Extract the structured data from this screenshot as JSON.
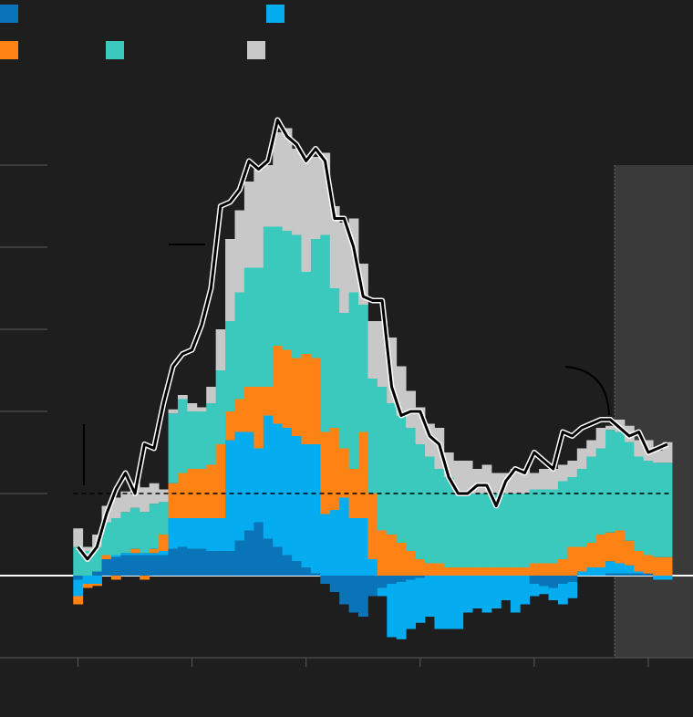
{
  "chart_data": {
    "type": "bar",
    "stacked": true,
    "x": [
      0,
      1,
      2,
      3,
      4,
      5,
      6,
      7,
      8,
      9,
      10,
      11,
      12,
      13,
      14,
      15,
      16,
      17,
      18,
      19,
      20,
      21,
      22,
      23,
      24,
      25,
      26,
      27,
      28,
      29,
      30,
      31,
      32,
      33,
      34,
      35,
      36,
      37,
      38,
      39,
      40,
      41,
      42,
      43,
      44,
      45,
      46,
      47,
      48,
      49,
      50,
      51,
      52,
      53,
      54,
      55,
      56,
      57,
      58,
      59,
      60,
      61,
      62
    ],
    "xlim": [
      -8.2,
      64.7
    ],
    "xticks": [
      0,
      12,
      24,
      36,
      48,
      60
    ],
    "ylim": [
      -2,
      12
    ],
    "yticks": [
      -2,
      0,
      2,
      4,
      6,
      8,
      10
    ],
    "reference_line": 2,
    "shade_start": 56.45,
    "series": [
      {
        "color": "#0a74b8",
        "values": [
          -0.1,
          0,
          0.1,
          0.4,
          0.45,
          0.5,
          0.5,
          0.5,
          0.5,
          0.5,
          0.65,
          0.7,
          0.65,
          0.65,
          0.6,
          0.6,
          0.6,
          0.85,
          1.1,
          1.3,
          0.9,
          0.7,
          0.5,
          0.35,
          0.2,
          0.05,
          -0.2,
          -0.4,
          -0.7,
          -0.9,
          -1.0,
          -0.5,
          -0.3,
          -0.2,
          -0.15,
          -0.1,
          -0.05,
          0,
          0,
          0,
          0,
          0,
          0,
          0,
          0,
          0,
          0,
          0,
          -0.2,
          -0.25,
          -0.3,
          -0.2,
          -0.15,
          0,
          0,
          0,
          0.05,
          0.05,
          0.05,
          0.05,
          0.05,
          0,
          0
        ]
      },
      {
        "color": "#05acf0",
        "values": [
          -0.4,
          -0.2,
          -0.2,
          0,
          0.05,
          0.05,
          0.05,
          0.05,
          0.05,
          0.1,
          0.75,
          0.7,
          0.75,
          0.75,
          0.8,
          0.8,
          2.7,
          2.65,
          2.4,
          1.8,
          3.0,
          3.0,
          3.1,
          3.05,
          3.0,
          3.15,
          1.5,
          1.6,
          1.9,
          1.4,
          1.4,
          0.4,
          -0.2,
          -1.3,
          -1.4,
          -1.2,
          -1.1,
          -1.0,
          -1.3,
          -1.3,
          -1.3,
          -0.9,
          -0.8,
          -0.9,
          -0.8,
          -0.6,
          -0.9,
          -0.7,
          -0.3,
          -0.2,
          -0.3,
          -0.5,
          -0.4,
          0.1,
          0.2,
          0.2,
          0.3,
          0.25,
          0.2,
          0.05,
          0,
          -0.1,
          -0.1
        ]
      },
      {
        "color": "#ff8314",
        "values": [
          -0.2,
          -0.1,
          -0.05,
          0.1,
          -0.1,
          0,
          0.1,
          -0.1,
          0.1,
          0.4,
          0.85,
          1.1,
          1.2,
          1.2,
          1.3,
          1.8,
          0.7,
          0.8,
          1.1,
          1.5,
          0.7,
          1.9,
          1.9,
          1.9,
          2.2,
          2.1,
          2.0,
          2.0,
          1.2,
          1.2,
          2.1,
          1.6,
          1.1,
          1.0,
          0.8,
          0.6,
          0.4,
          0.3,
          0.3,
          0.2,
          0.2,
          0.2,
          0.2,
          0.2,
          0.2,
          0.2,
          0.2,
          0.2,
          0.3,
          0.3,
          0.3,
          0.4,
          0.7,
          0.6,
          0.6,
          0.8,
          0.7,
          0.8,
          0.6,
          0.5,
          0.45,
          0.45,
          0.45
        ]
      },
      {
        "color": "#3bc8bd",
        "values": [
          0.7,
          0.6,
          0.6,
          0.8,
          0.9,
          1.0,
          1.0,
          1.0,
          1.1,
          0.8,
          1.7,
          1.8,
          1.4,
          1.4,
          1.5,
          1.8,
          2.2,
          2.6,
          2.9,
          2.9,
          3.9,
          2.9,
          2.9,
          3.0,
          2.0,
          2.9,
          4.8,
          3.4,
          3.3,
          4.3,
          3.1,
          2.8,
          3.5,
          3.2,
          3.1,
          3.0,
          2.8,
          2.6,
          2.3,
          2.2,
          1.8,
          1.8,
          1.8,
          1.8,
          1.8,
          1.8,
          1.8,
          1.8,
          1.8,
          1.8,
          1.8,
          1.9,
          1.7,
          1.9,
          2.1,
          2.1,
          2.5,
          2.4,
          2.4,
          2.3,
          2.3,
          2.3,
          2.3
        ]
      },
      {
        "color": "#c8c8c8",
        "values": [
          0.45,
          0.1,
          0.3,
          0.4,
          0.5,
          0.5,
          0.6,
          0.6,
          0.5,
          0.3,
          0.1,
          0.1,
          0.2,
          0.1,
          0.4,
          1.0,
          2.0,
          2.0,
          2.1,
          2.4,
          1.5,
          2.3,
          2.5,
          2.1,
          2.8,
          2.0,
          2.0,
          2.0,
          2.2,
          1.8,
          1.0,
          1.4,
          1.6,
          1.6,
          1.2,
          0.9,
          0.9,
          0.8,
          1.0,
          0.6,
          0.8,
          0.8,
          0.6,
          0.7,
          0.5,
          0.5,
          0.6,
          0.6,
          0.4,
          0.5,
          0.5,
          0.4,
          0.4,
          0.5,
          0.4,
          0.5,
          0.1,
          0.3,
          0.4,
          0.4,
          0.5,
          0.3,
          0.5
        ]
      }
    ],
    "line": {
      "color": "#000000",
      "values": [
        0.7,
        0.4,
        0.7,
        1.5,
        2.1,
        2.5,
        2.0,
        3.2,
        3.1,
        4.2,
        5.1,
        5.4,
        5.5,
        6.1,
        7.0,
        9.0,
        9.1,
        9.4,
        10.1,
        9.9,
        10.1,
        11.1,
        10.7,
        10.5,
        10.1,
        10.4,
        10.1,
        8.7,
        8.7,
        8.0,
        6.8,
        6.7,
        6.7,
        4.6,
        3.9,
        4.0,
        4.0,
        3.4,
        3.2,
        2.4,
        2.0,
        2.0,
        2.2,
        2.2,
        1.7,
        2.3,
        2.6,
        2.5,
        3.0,
        2.8,
        2.6,
        3.5,
        3.4,
        3.6,
        3.7,
        3.8,
        3.8,
        3.6,
        3.4,
        3.5,
        3.0,
        3.1,
        3.2
      ]
    }
  }
}
